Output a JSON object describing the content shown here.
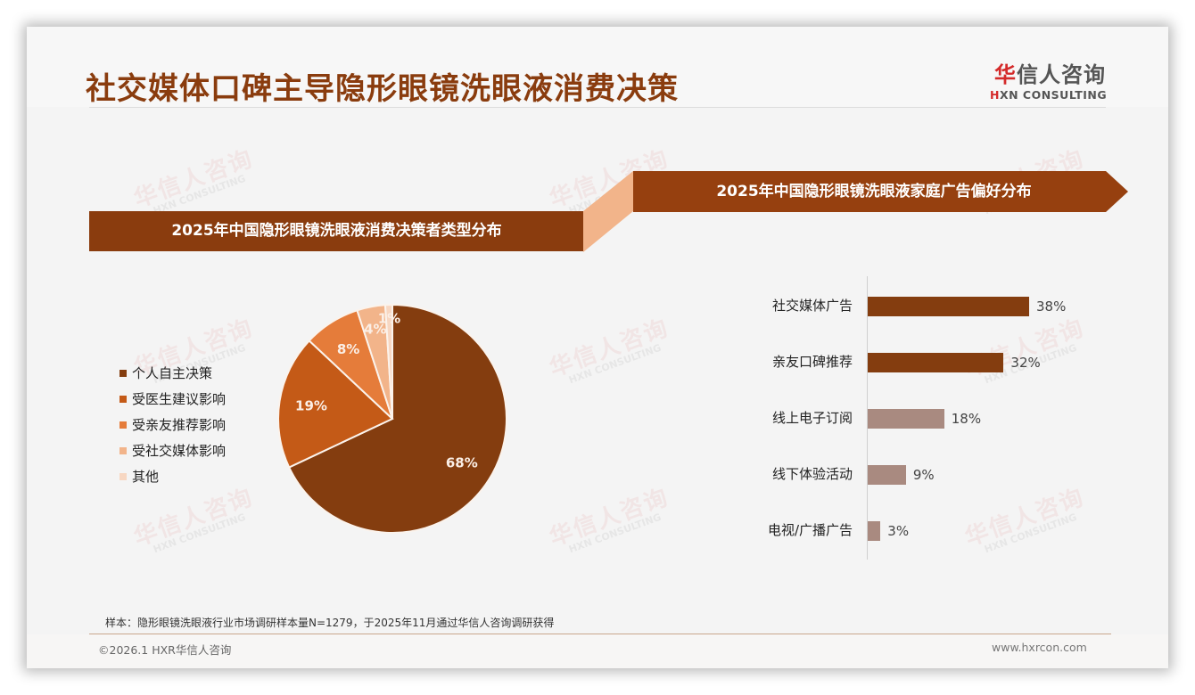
{
  "header": {
    "title": "社交媒体口碑主导隐形眼镜洗眼液消费决策",
    "logo_cn_accent": "华",
    "logo_cn_rest": "信人咨询",
    "logo_en_accent": "H",
    "logo_en_rest": "XN CONSULTING"
  },
  "watermark": {
    "cn": "华信人咨询",
    "en": "HXN CONSULTING"
  },
  "left_panel": {
    "banner_title": "2025年中国隐形眼镜洗眼液消费决策者类型分布"
  },
  "right_panel": {
    "banner_title": "2025年中国隐形眼镜洗眼液家庭广告偏好分布"
  },
  "colors": {
    "brand_brown": "#8a3c0e",
    "connector_peach": "#f2b48a",
    "bar_dark": "#843d0f",
    "bar_light": "#a98a80"
  },
  "chart_data": [
    {
      "type": "pie",
      "title": "2025年中国隐形眼镜洗眼液消费决策者类型分布",
      "categories": [
        "个人自主决策",
        "受医生建议影响",
        "受亲友推荐影响",
        "受社交媒体影响",
        "其他"
      ],
      "values": [
        68,
        19,
        8,
        4,
        1
      ],
      "labels": [
        "68%",
        "19%",
        "8%",
        "4%",
        "1%"
      ],
      "colors": [
        "#843d0f",
        "#c45a17",
        "#e57c3a",
        "#f2b48a",
        "#f7d7c2"
      ],
      "legend_position": "left",
      "start_angle": "12 o'clock, clockwise"
    },
    {
      "type": "bar",
      "orientation": "horizontal",
      "title": "2025年中国隐形眼镜洗眼液家庭广告偏好分布",
      "categories": [
        "社交媒体广告",
        "亲友口碑推荐",
        "线上电子订阅",
        "线下体验活动",
        "电视/广播广告"
      ],
      "values": [
        38,
        32,
        18,
        9,
        3
      ],
      "labels": [
        "38%",
        "32%",
        "18%",
        "9%",
        "3%"
      ],
      "colors": [
        "#843d0f",
        "#843d0f",
        "#a98a80",
        "#a98a80",
        "#a98a80"
      ],
      "xlabel": "",
      "ylabel": "",
      "grid": false
    }
  ],
  "footer": {
    "note": "样本：隐形眼镜洗眼液行业市场调研样本量N=1279，于2025年11月通过华信人咨询调研获得",
    "copyright": "©2026.1 HXR华信人咨询",
    "website": "www.hxrcon.com"
  }
}
